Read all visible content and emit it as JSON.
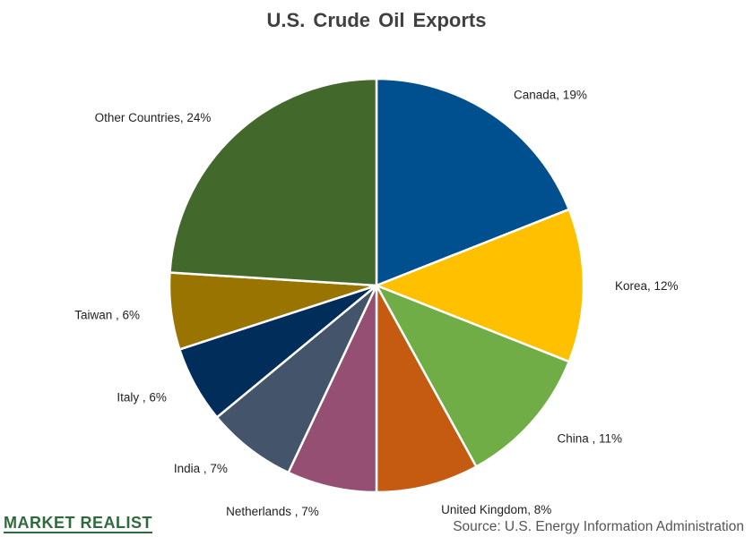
{
  "chart_data": {
    "type": "pie",
    "title": "U.S. Crude Oil Exports",
    "slices": [
      {
        "label": "Canada, 19%",
        "value": 19,
        "color": "#00508f"
      },
      {
        "label": "Korea, 12%",
        "value": 12,
        "color": "#ffc000"
      },
      {
        "label": "China , 11%",
        "value": 11,
        "color": "#70ad47"
      },
      {
        "label": "United Kingdom, 8%",
        "value": 8,
        "color": "#c55a11"
      },
      {
        "label": "Netherlands , 7%",
        "value": 7,
        "color": "#954f72"
      },
      {
        "label": "India , 7%",
        "value": 7,
        "color": "#44546a"
      },
      {
        "label": "Italy , 6%",
        "value": 6,
        "color": "#002d5a"
      },
      {
        "label": "Taiwan , 6%",
        "value": 6,
        "color": "#9a7400"
      },
      {
        "label": "Other Countries, 24%",
        "value": 24,
        "color": "#43682b"
      }
    ]
  },
  "footer": {
    "brand": "MARKET REALIST",
    "source": "Source: U.S. Energy Information  Administration"
  }
}
